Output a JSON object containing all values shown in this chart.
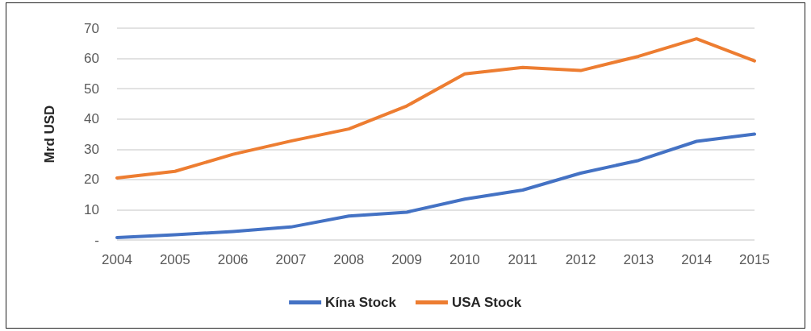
{
  "chart_data": {
    "type": "line",
    "ylabel": "Mrd USD",
    "categories": [
      "2004",
      "2005",
      "2006",
      "2007",
      "2008",
      "2009",
      "2010",
      "2011",
      "2012",
      "2013",
      "2014",
      "2015"
    ],
    "series": [
      {
        "name": "Kína Stock",
        "color": "#4472c4",
        "values": [
          0.8,
          1.7,
          2.8,
          4.3,
          7.9,
          9.2,
          13.5,
          16.5,
          22.1,
          26.3,
          32.6,
          35.0
        ]
      },
      {
        "name": "USA Stock",
        "color": "#ed7d31",
        "values": [
          20.5,
          22.7,
          28.3,
          32.7,
          36.7,
          44.3,
          54.9,
          57.0,
          56.0,
          60.7,
          66.5,
          59.2
        ]
      }
    ],
    "ylim": [
      0,
      70
    ],
    "yticks": [
      {
        "value": 0,
        "label": "-"
      },
      10,
      20,
      30,
      40,
      50,
      60,
      70
    ],
    "grid": "y",
    "legend": "bottom",
    "marker": "none",
    "line_style": "solid"
  }
}
